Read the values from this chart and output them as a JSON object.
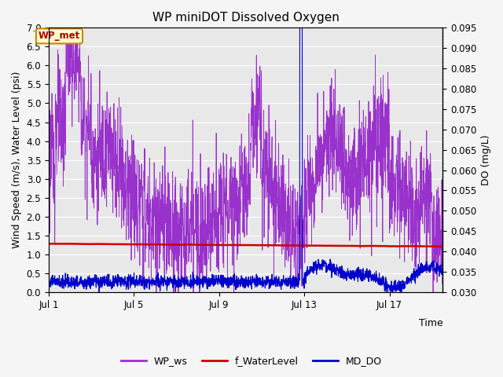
{
  "title": "WP miniDOT Dissolved Oxygen",
  "ylabel_left": "Wind Speed (m/s), Water Level (psi)",
  "ylabel_right": "DO (mg/L)",
  "xlabel": "Time",
  "ylim_left": [
    0.0,
    7.0
  ],
  "ylim_right": [
    0.03,
    0.095
  ],
  "yticks_left": [
    0.0,
    0.5,
    1.0,
    1.5,
    2.0,
    2.5,
    3.0,
    3.5,
    4.0,
    4.5,
    5.0,
    5.5,
    6.0,
    6.5,
    7.0
  ],
  "yticks_right": [
    0.03,
    0.035,
    0.04,
    0.045,
    0.05,
    0.055,
    0.06,
    0.065,
    0.07,
    0.075,
    0.08,
    0.085,
    0.09,
    0.095
  ],
  "xtick_labels": [
    "Jul 1",
    "Jul 5",
    "Jul 9",
    "Jul 13",
    "Jul 17"
  ],
  "xtick_positions": [
    0,
    4,
    8,
    12,
    16
  ],
  "xlim": [
    0,
    18.5
  ],
  "legend_labels": [
    "WP_ws",
    "f_WaterLevel",
    "MD_DO"
  ],
  "legend_colors": [
    "#9932CC",
    "#cc0000",
    "#0000cc"
  ],
  "wp_met_label": "WP_met",
  "wp_met_bg": "#ffffcc",
  "wp_met_border": "#cc8800",
  "background_color": "#e8e8e8",
  "grid_color": "#ffffff",
  "title_fontsize": 11,
  "axis_fontsize": 9,
  "legend_fontsize": 9,
  "ws_color": "#9932CC",
  "water_level_color": "#cc0000",
  "do_color": "#0000cc"
}
